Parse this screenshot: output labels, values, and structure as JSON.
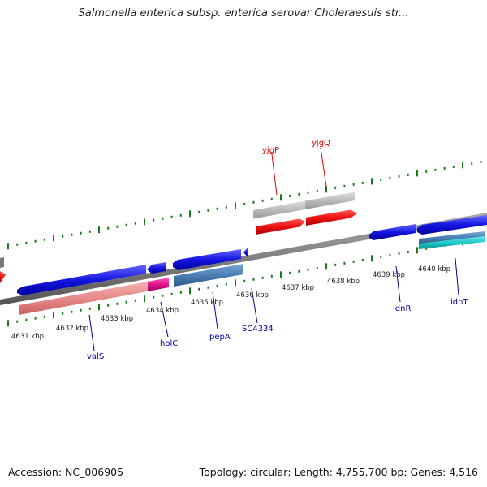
{
  "title": "Salmonella enterica subsp. enterica serovar Choleraesuis str...",
  "footer": {
    "accession": "Accession: NC_006905",
    "summary": "Topology: circular; Length: 4,755,700 bp; Genes: 4,516"
  },
  "ticks": [
    "4631 kbp",
    "4632 kbp",
    "4633 kbp",
    "4634 kbp",
    "4635 kbp",
    "4636 kbp",
    "4637 kbp",
    "4638 kbp",
    "4639 kbp",
    "4640 kbp"
  ],
  "genes": [
    {
      "label": "yjgP",
      "color": "#dd0000"
    },
    {
      "label": "yjgQ",
      "color": "#dd0000"
    },
    {
      "label": "valS",
      "color": "#0000aa"
    },
    {
      "label": "holC",
      "color": "#0000aa"
    },
    {
      "label": "pepA",
      "color": "#0000aa"
    },
    {
      "label": "SC4334",
      "color": "#0000aa"
    },
    {
      "label": "idnR",
      "color": "#0000aa"
    },
    {
      "label": "idnT",
      "color": "#0000aa"
    }
  ],
  "colors": {
    "backbone": "#808080",
    "tick": "#1a7a1a",
    "forward_cds": "#ee1111",
    "forward_gene": "#bbbbbb",
    "reverse_cds": "#1515e0",
    "valS_gene": "#e88a8a",
    "holC_gene": "#e0148c",
    "pepA_gene": "#4a7fb5",
    "idnT_gene": "#1fc8c8"
  }
}
